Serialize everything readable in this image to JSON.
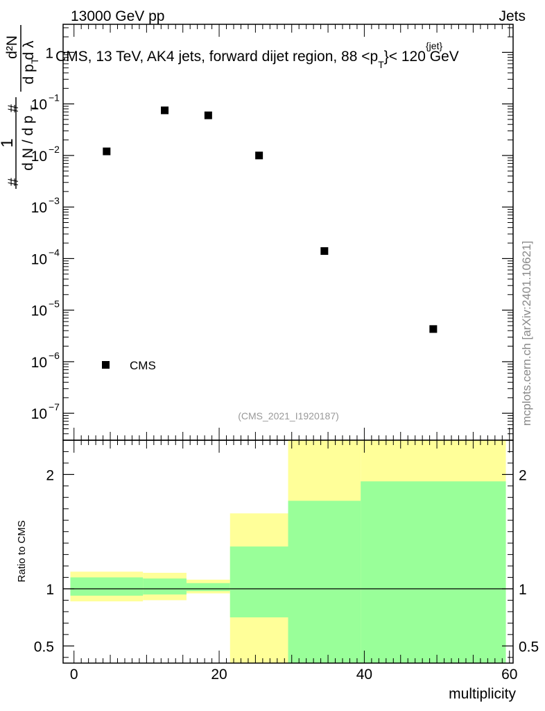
{
  "header": {
    "left": "13000 GeV pp",
    "right": "Jets"
  },
  "side_label": "mcplots.cern.ch [arXiv:2401.10621]",
  "chart_data": [
    {
      "type": "scatter",
      "title": "CMS, 13 TeV, AK4 jets, forward dijet region, 88 <p_T^{jet}> < 120 GeV",
      "title_parts": {
        "main": "CMS, 13 TeV, AK4 jets, forward dijet region, 88 <p",
        "sub": "T",
        "sup": "{jet}",
        "tail": "}< 120 GeV"
      },
      "ylabel": "1 / (dN / dp_T) · d²N / (dp_T dλ)",
      "ylabel_parts": {
        "hash": "#",
        "one": "1",
        "left_den": "d N / d p",
        "right_num": "d²N",
        "right_den": "d p  d λ",
        "sub": "T"
      },
      "yscale": "log",
      "ylim": [
        3e-08,
        3.5
      ],
      "y_ticks": [
        {
          "value": 1,
          "mant": "1",
          "exp": ""
        },
        {
          "value": 0.1,
          "mant": "10",
          "exp": "−1"
        },
        {
          "value": 0.01,
          "mant": "10",
          "exp": "−2"
        },
        {
          "value": 0.001,
          "mant": "10",
          "exp": "−3"
        },
        {
          "value": 0.0001,
          "mant": "10",
          "exp": "−4"
        },
        {
          "value": 1e-05,
          "mant": "10",
          "exp": "−5"
        },
        {
          "value": 1e-06,
          "mant": "10",
          "exp": "−6"
        },
        {
          "value": 1e-07,
          "mant": "10",
          "exp": "−7"
        }
      ],
      "xlim": [
        -1.5,
        60.5
      ],
      "series": [
        {
          "name": "CMS",
          "x": [
            4.5,
            12.5,
            18.5,
            25.5,
            34.5,
            49.5
          ],
          "y": [
            0.012,
            0.075,
            0.06,
            0.01,
            0.00014,
            4.3e-06
          ]
        }
      ],
      "legend": {
        "label": "CMS",
        "placement": "bottom-left"
      },
      "watermark": "(CMS_2021_I1920187)"
    },
    {
      "type": "area",
      "ylabel": "Ratio to CMS",
      "xlabel": "multiplicity",
      "xlim": [
        -1.5,
        60.5
      ],
      "ylim": [
        0.35,
        2.3
      ],
      "x_ticks": [
        0,
        20,
        40,
        60
      ],
      "y_ticks": [
        {
          "value": 0.5,
          "label": "0.5"
        },
        {
          "value": 1,
          "label": "1"
        },
        {
          "value": 2,
          "label": "2"
        }
      ],
      "reference_line": 1,
      "bins": [
        {
          "x0": -0.5,
          "x1": 9.5,
          "green_lo": 0.94,
          "green_hi": 1.1,
          "yellow_lo": 0.89,
          "yellow_hi": 1.15
        },
        {
          "x0": 9.5,
          "x1": 15.5,
          "green_lo": 0.95,
          "green_hi": 1.09,
          "yellow_lo": 0.9,
          "yellow_hi": 1.14
        },
        {
          "x0": 15.5,
          "x1": 21.5,
          "green_lo": 0.98,
          "green_hi": 1.05,
          "yellow_lo": 0.96,
          "yellow_hi": 1.08
        },
        {
          "x0": 21.5,
          "x1": 29.5,
          "green_lo": 0.75,
          "green_hi": 1.37,
          "yellow_lo": 0.35,
          "yellow_hi": 1.66
        },
        {
          "x0": 29.5,
          "x1": 39.5,
          "green_lo": 0.35,
          "green_hi": 1.77,
          "yellow_lo": 0.35,
          "yellow_hi": 2.3
        },
        {
          "x0": 39.5,
          "x1": 59.5,
          "green_lo": 0.35,
          "green_hi": 1.94,
          "yellow_lo": 0.35,
          "yellow_hi": 2.3
        }
      ],
      "colors": {
        "green": "#99ff99",
        "yellow": "#ffff99"
      }
    }
  ]
}
